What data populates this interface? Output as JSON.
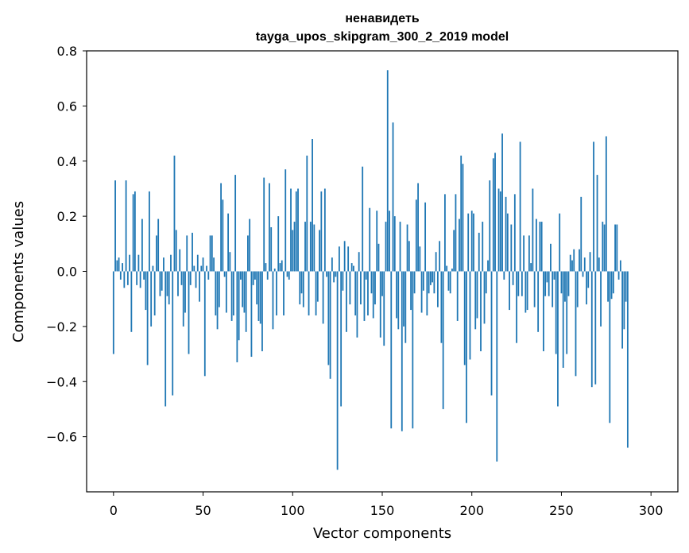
{
  "chart_data": {
    "type": "bar",
    "title_line1": "ненавидеть",
    "title_line2": "tayga_upos_skipgram_300_2_2019 model",
    "xlabel": "Vector components",
    "ylabel": "Components values",
    "xlim": [
      -15,
      315
    ],
    "ylim": [
      -0.8,
      0.8
    ],
    "xticks": [
      0,
      50,
      100,
      150,
      200,
      250,
      300
    ],
    "xtick_labels": [
      "0",
      "50",
      "100",
      "150",
      "200",
      "250",
      "300"
    ],
    "yticks": [
      -0.6,
      -0.4,
      -0.2,
      0.0,
      0.2,
      0.4,
      0.6,
      0.8
    ],
    "ytick_labels": [
      "−0.6",
      "−0.4",
      "−0.2",
      "0.0",
      "0.2",
      "0.4",
      "0.6",
      "0.8"
    ],
    "bar_color": "#1f77b4",
    "grid": false,
    "legend": "none",
    "values": [
      -0.3,
      0.33,
      0.04,
      0.05,
      -0.03,
      0.03,
      -0.06,
      0.33,
      -0.05,
      0.06,
      -0.22,
      0.28,
      0.29,
      -0.05,
      0.06,
      -0.06,
      0.19,
      -0.03,
      -0.14,
      -0.34,
      0.29,
      -0.2,
      0.02,
      -0.16,
      0.13,
      0.19,
      -0.09,
      -0.07,
      0.05,
      -0.49,
      -0.09,
      -0.12,
      0.06,
      -0.45,
      0.42,
      0.15,
      -0.09,
      0.08,
      -0.05,
      -0.2,
      -0.15,
      0.13,
      -0.3,
      -0.05,
      0.14,
      0.02,
      -0.06,
      0.06,
      -0.11,
      0.02,
      0.05,
      -0.38,
      0.02,
      -0.03,
      0.13,
      0.13,
      0.05,
      -0.16,
      -0.21,
      -0.13,
      0.32,
      0.26,
      -0.02,
      -0.15,
      0.21,
      0.07,
      -0.18,
      -0.16,
      0.35,
      -0.33,
      -0.25,
      -0.03,
      -0.13,
      -0.15,
      -0.22,
      0.13,
      0.19,
      -0.31,
      -0.05,
      -0.03,
      -0.12,
      -0.18,
      -0.19,
      -0.29,
      0.34,
      0.03,
      -0.03,
      0.32,
      0.16,
      -0.21,
      0.01,
      -0.16,
      0.2,
      0.03,
      0.04,
      -0.16,
      0.37,
      -0.02,
      -0.03,
      0.3,
      0.15,
      0.18,
      0.29,
      0.3,
      -0.12,
      -0.08,
      -0.13,
      0.18,
      0.42,
      -0.16,
      0.18,
      0.48,
      0.17,
      -0.16,
      -0.11,
      0.15,
      0.29,
      -0.19,
      0.3,
      -0.02,
      -0.34,
      -0.39,
      0.05,
      -0.04,
      -0.02,
      -0.72,
      0.09,
      -0.49,
      -0.07,
      0.11,
      -0.22,
      0.09,
      -0.12,
      0.03,
      0.02,
      -0.16,
      -0.24,
      0.07,
      -0.12,
      0.38,
      -0.18,
      -0.03,
      -0.16,
      0.23,
      -0.08,
      -0.17,
      -0.12,
      0.22,
      0.1,
      -0.24,
      -0.09,
      -0.27,
      0.18,
      0.73,
      0.22,
      -0.57,
      0.54,
      0.2,
      -0.17,
      -0.21,
      0.18,
      -0.58,
      -0.2,
      -0.26,
      0.17,
      0.11,
      -0.14,
      -0.57,
      -0.08,
      0.26,
      0.32,
      0.09,
      -0.15,
      -0.07,
      0.25,
      -0.16,
      -0.08,
      -0.05,
      -0.04,
      -0.08,
      0.07,
      -0.13,
      0.11,
      -0.26,
      -0.5,
      0.28,
      0.02,
      -0.07,
      -0.08,
      0.01,
      0.15,
      0.28,
      -0.18,
      0.19,
      0.42,
      0.39,
      -0.34,
      -0.55,
      0.21,
      -0.32,
      0.22,
      0.21,
      -0.21,
      -0.17,
      0.14,
      -0.29,
      0.18,
      -0.19,
      -0.08,
      0.04,
      0.33,
      -0.45,
      0.41,
      0.43,
      -0.69,
      0.3,
      0.29,
      0.5,
      -0.03,
      0.27,
      0.21,
      -0.14,
      0.17,
      -0.05,
      0.28,
      -0.26,
      -0.09,
      0.47,
      -0.09,
      0.13,
      -0.15,
      -0.14,
      0.13,
      0.03,
      0.3,
      -0.13,
      0.19,
      -0.22,
      0.18,
      0.18,
      -0.29,
      -0.09,
      -0.04,
      -0.09,
      0.1,
      -0.13,
      -0.03,
      -0.3,
      -0.49,
      0.21,
      -0.08,
      -0.35,
      -0.11,
      -0.3,
      -0.09,
      0.06,
      0.04,
      0.08,
      -0.38,
      -0.13,
      0.08,
      0.27,
      -0.02,
      0.05,
      -0.12,
      -0.06,
      0.07,
      -0.42,
      0.47,
      -0.41,
      0.35,
      0.05,
      -0.2,
      0.18,
      0.17,
      0.49,
      -0.11,
      -0.55,
      -0.1,
      -0.08,
      0.17,
      0.17,
      -0.03,
      0.04,
      -0.28,
      -0.21,
      -0.11,
      -0.64
    ]
  }
}
